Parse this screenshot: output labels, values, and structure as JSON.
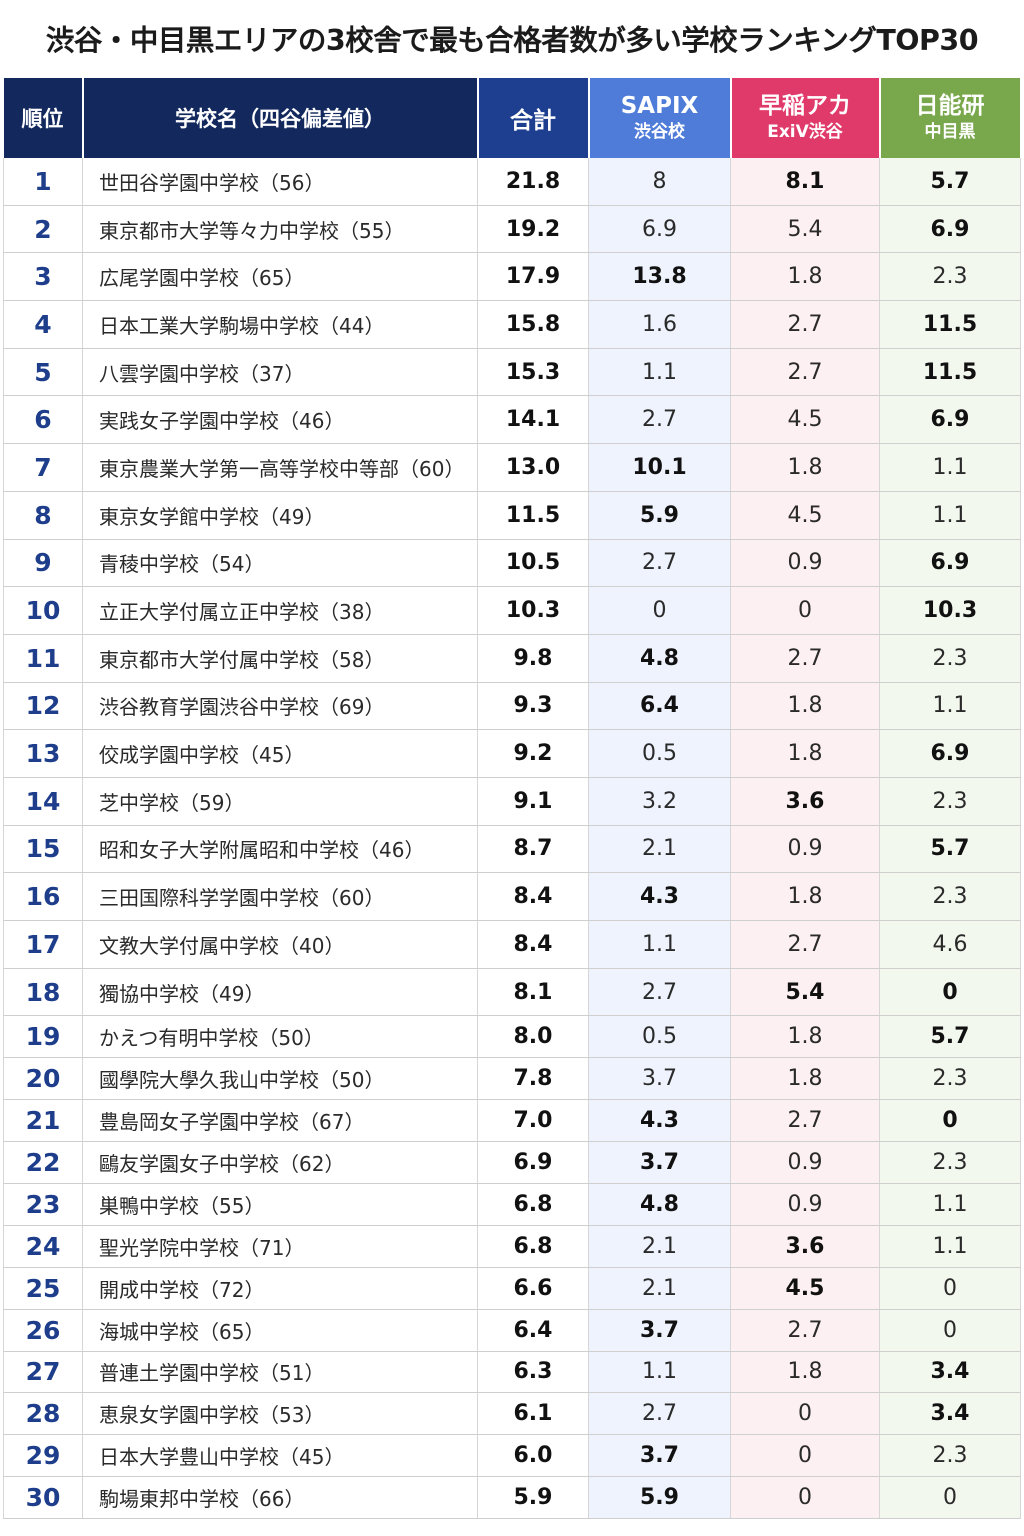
{
  "title": "渋谷・中目黒エリアの3校舎で最も合格者数が多い学校ランキングTOP30",
  "header": {
    "rank": "順位",
    "school": "学校名（四谷偏差値）",
    "total": "合計",
    "sapix": "SAPIX",
    "sapix_branch": "渋谷校",
    "waseda": "早稲アカ",
    "waseda_branch": "ExiV渋谷",
    "nichi": "日能研",
    "nichi_branch": "中目黒"
  },
  "colors": {
    "header_navy": "#13295e",
    "header_total": "#1e3f8f",
    "header_sapix": "#4f7cd8",
    "header_waseda": "#e03a6a",
    "header_nichi": "#79a84c",
    "rank_text": "#1e3e8c"
  },
  "chart_data": {
    "type": "table",
    "columns": [
      "順位",
      "学校名（四谷偏差値）",
      "合計",
      "SAPIX 渋谷校",
      "早稲アカ ExiV渋谷",
      "日能研 中目黒"
    ],
    "rows": [
      {
        "rank": "1",
        "school": "世田谷学園中学校（56）",
        "total": "21.8",
        "sapix": "8",
        "waseda": "8.1",
        "nichi": "5.7",
        "bold": [
          "waseda",
          "nichi"
        ]
      },
      {
        "rank": "2",
        "school": "東京都市大学等々力中学校（55）",
        "total": "19.2",
        "sapix": "6.9",
        "waseda": "5.4",
        "nichi": "6.9",
        "bold": [
          "nichi"
        ]
      },
      {
        "rank": "3",
        "school": "広尾学園中学校（65）",
        "total": "17.9",
        "sapix": "13.8",
        "waseda": "1.8",
        "nichi": "2.3",
        "bold": [
          "sapix"
        ]
      },
      {
        "rank": "4",
        "school": "日本工業大学駒場中学校（44）",
        "total": "15.8",
        "sapix": "1.6",
        "waseda": "2.7",
        "nichi": "11.5",
        "bold": [
          "nichi"
        ]
      },
      {
        "rank": "5",
        "school": "八雲学園中学校（37）",
        "total": "15.3",
        "sapix": "1.1",
        "waseda": "2.7",
        "nichi": "11.5",
        "bold": [
          "nichi"
        ]
      },
      {
        "rank": "6",
        "school": "実践女子学園中学校（46）",
        "total": "14.1",
        "sapix": "2.7",
        "waseda": "4.5",
        "nichi": "6.9",
        "bold": [
          "nichi"
        ]
      },
      {
        "rank": "7",
        "school": "東京農業大学第一高等学校中等部（60）",
        "total": "13.0",
        "sapix": "10.1",
        "waseda": "1.8",
        "nichi": "1.1",
        "bold": [
          "sapix"
        ]
      },
      {
        "rank": "8",
        "school": "東京女学館中学校（49）",
        "total": "11.5",
        "sapix": "5.9",
        "waseda": "4.5",
        "nichi": "1.1",
        "bold": [
          "sapix"
        ]
      },
      {
        "rank": "9",
        "school": "青稜中学校（54）",
        "total": "10.5",
        "sapix": "2.7",
        "waseda": "0.9",
        "nichi": "6.9",
        "bold": [
          "nichi"
        ]
      },
      {
        "rank": "10",
        "school": "立正大学付属立正中学校（38）",
        "total": "10.3",
        "sapix": "0",
        "waseda": "0",
        "nichi": "10.3",
        "bold": [
          "nichi"
        ]
      },
      {
        "rank": "11",
        "school": "東京都市大学付属中学校（58）",
        "total": "9.8",
        "sapix": "4.8",
        "waseda": "2.7",
        "nichi": "2.3",
        "bold": [
          "sapix"
        ]
      },
      {
        "rank": "12",
        "school": "渋谷教育学園渋谷中学校（69）",
        "total": "9.3",
        "sapix": "6.4",
        "waseda": "1.8",
        "nichi": "1.1",
        "bold": [
          "sapix"
        ]
      },
      {
        "rank": "13",
        "school": "佼成学園中学校（45）",
        "total": "9.2",
        "sapix": "0.5",
        "waseda": "1.8",
        "nichi": "6.9",
        "bold": [
          "nichi"
        ]
      },
      {
        "rank": "14",
        "school": "芝中学校（59）",
        "total": "9.1",
        "sapix": "3.2",
        "waseda": "3.6",
        "nichi": "2.3",
        "bold": [
          "waseda"
        ]
      },
      {
        "rank": "15",
        "school": "昭和女子大学附属昭和中学校（46）",
        "total": "8.7",
        "sapix": "2.1",
        "waseda": "0.9",
        "nichi": "5.7",
        "bold": [
          "nichi"
        ]
      },
      {
        "rank": "16",
        "school": "三田国際科学学園中学校（60）",
        "total": "8.4",
        "sapix": "4.3",
        "waseda": "1.8",
        "nichi": "2.3",
        "bold": [
          "sapix"
        ]
      },
      {
        "rank": "17",
        "school": "文教大学付属中学校（40）",
        "total": "8.4",
        "sapix": "1.1",
        "waseda": "2.7",
        "nichi": "4.6",
        "bold": []
      },
      {
        "rank": "18",
        "school": "獨協中学校（49）",
        "total": "8.1",
        "sapix": "2.7",
        "waseda": "5.4",
        "nichi": "0",
        "bold": [
          "waseda",
          "nichi"
        ]
      },
      {
        "rank": "19",
        "school": "かえつ有明中学校（50）",
        "total": "8.0",
        "sapix": "0.5",
        "waseda": "1.8",
        "nichi": "5.7",
        "bold": [
          "nichi"
        ]
      },
      {
        "rank": "20",
        "school": "國學院大學久我山中学校（50）",
        "total": "7.8",
        "sapix": "3.7",
        "waseda": "1.8",
        "nichi": "2.3",
        "bold": []
      },
      {
        "rank": "21",
        "school": "豊島岡女子学園中学校（67）",
        "total": "7.0",
        "sapix": "4.3",
        "waseda": "2.7",
        "nichi": "0",
        "bold": [
          "sapix",
          "nichi"
        ]
      },
      {
        "rank": "22",
        "school": "鷗友学園女子中学校（62）",
        "total": "6.9",
        "sapix": "3.7",
        "waseda": "0.9",
        "nichi": "2.3",
        "bold": [
          "sapix"
        ]
      },
      {
        "rank": "23",
        "school": "巣鴨中学校（55）",
        "total": "6.8",
        "sapix": "4.8",
        "waseda": "0.9",
        "nichi": "1.1",
        "bold": [
          "sapix"
        ]
      },
      {
        "rank": "24",
        "school": "聖光学院中学校（71）",
        "total": "6.8",
        "sapix": "2.1",
        "waseda": "3.6",
        "nichi": "1.1",
        "bold": [
          "waseda"
        ]
      },
      {
        "rank": "25",
        "school": "開成中学校（72）",
        "total": "6.6",
        "sapix": "2.1",
        "waseda": "4.5",
        "nichi": "0",
        "bold": [
          "waseda"
        ]
      },
      {
        "rank": "26",
        "school": "海城中学校（65）",
        "total": "6.4",
        "sapix": "3.7",
        "waseda": "2.7",
        "nichi": "0",
        "bold": [
          "sapix"
        ]
      },
      {
        "rank": "27",
        "school": "普連土学園中学校（51）",
        "total": "6.3",
        "sapix": "1.1",
        "waseda": "1.8",
        "nichi": "3.4",
        "bold": [
          "nichi"
        ]
      },
      {
        "rank": "28",
        "school": "恵泉女学園中学校（53）",
        "total": "6.1",
        "sapix": "2.7",
        "waseda": "0",
        "nichi": "3.4",
        "bold": [
          "nichi"
        ]
      },
      {
        "rank": "29",
        "school": "日本大学豊山中学校（45）",
        "total": "6.0",
        "sapix": "3.7",
        "waseda": "0",
        "nichi": "2.3",
        "bold": [
          "sapix"
        ]
      },
      {
        "rank": "30",
        "school": "駒場東邦中学校（66）",
        "total": "5.9",
        "sapix": "5.9",
        "waseda": "0",
        "nichi": "0",
        "bold": [
          "sapix"
        ]
      }
    ]
  }
}
